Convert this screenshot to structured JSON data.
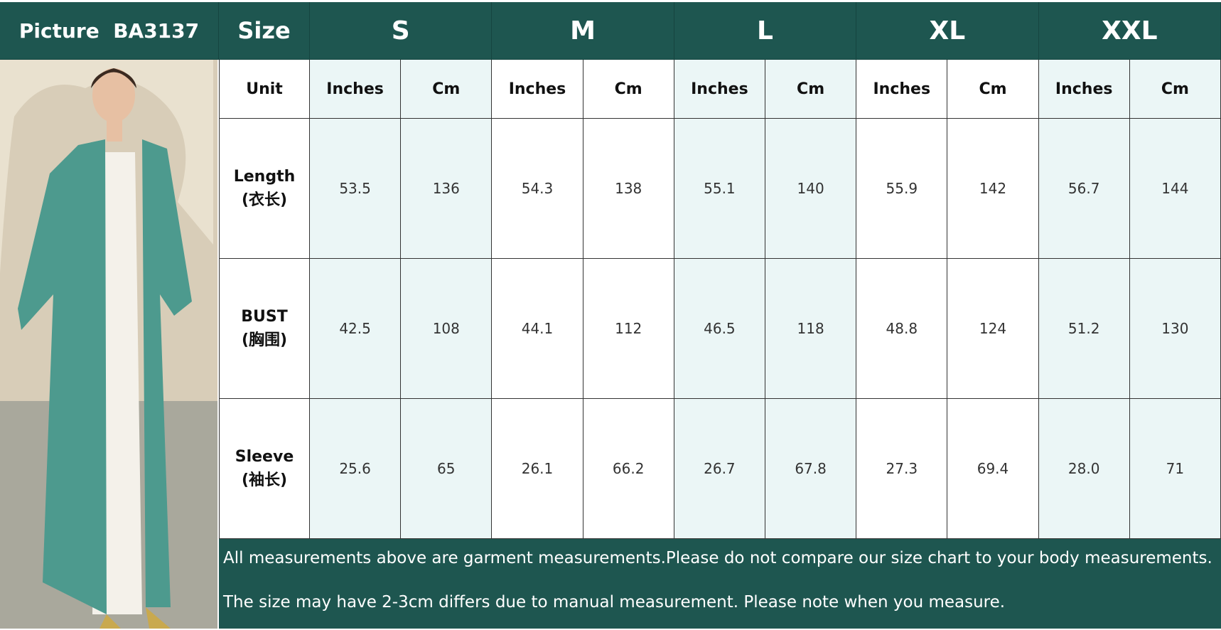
{
  "table": {
    "picture_label": "Picture  BA3137",
    "size_label": "Size",
    "sizes": [
      "S",
      "M",
      "L",
      "XL",
      "XXL"
    ],
    "unit_label": "Unit",
    "units": [
      "Inches",
      "Cm",
      "Inches",
      "Cm",
      "Inches",
      "Cm",
      "Inches",
      "Cm",
      "Inches",
      "Cm"
    ],
    "rows": [
      {
        "label": "Length",
        "label_cn": "(衣长)",
        "values": [
          "53.5",
          "136",
          "54.3",
          "138",
          "55.1",
          "140",
          "55.9",
          "142",
          "56.7",
          "144"
        ]
      },
      {
        "label": "BUST",
        "label_cn": "(胸围)",
        "values": [
          "42.5",
          "108",
          "44.1",
          "112",
          "46.5",
          "118",
          "48.8",
          "124",
          "51.2",
          "130"
        ]
      },
      {
        "label": "Sleeve",
        "label_cn": "(袖长)",
        "values": [
          "25.6",
          "65",
          "26.1",
          "66.2",
          "26.7",
          "67.8",
          "27.3",
          "69.4",
          "28.0",
          "71"
        ]
      }
    ],
    "notes": [
      "All measurements above are garment measurements.Please do not compare our size chart to your body measurements.",
      "The size may have 2-3cm differs due to manual measurement. Please note when you measure."
    ]
  }
}
